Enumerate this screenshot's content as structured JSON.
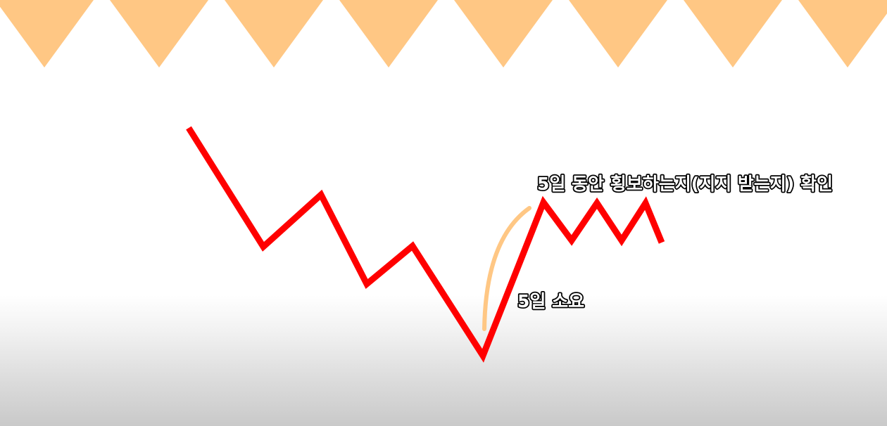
{
  "colors": {
    "banner": "#FFC784",
    "price_line": "#FF0000",
    "arc": "#FFC784",
    "label_fill": "#FFFFFF",
    "label_outline": "#000000"
  },
  "labels": {
    "sideways_check": "5일 동안 횡보하는지(지지 받는지) 확인",
    "days_taken": "5일 소요"
  }
}
